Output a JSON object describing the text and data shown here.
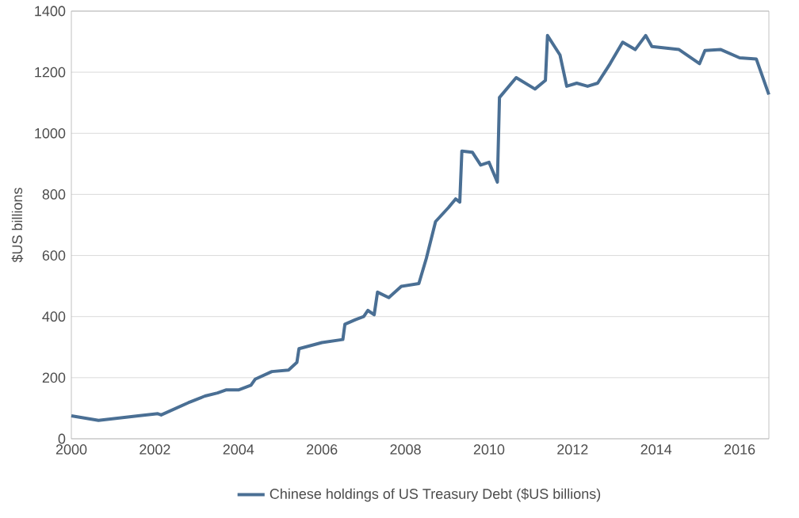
{
  "chart_data": {
    "type": "line",
    "ylabel": "$US billions",
    "xlim": [
      2000,
      2016.7
    ],
    "xticks": [
      2000,
      2002,
      2004,
      2006,
      2008,
      2010,
      2012,
      2014,
      2016
    ],
    "ylim": [
      0,
      1400
    ],
    "yticks": [
      0,
      200,
      400,
      600,
      800,
      1000,
      1200,
      1400
    ],
    "grid": "y",
    "legend": "bottom",
    "marker": "none",
    "line_style": "solid",
    "series": [
      {
        "name": "Chinese holdings of US Treasury Debt ($US billions)",
        "color": "#4a6f94",
        "x": [
          2000,
          2000.65,
          2001.6,
          2002.07,
          2002.15,
          2002.8,
          2003.2,
          2003.5,
          2003.7,
          2004,
          2004.3,
          2004.4,
          2004.8,
          2005.2,
          2005.4,
          2005.45,
          2006,
          2006.5,
          2006.55,
          2006.8,
          2007,
          2007.1,
          2007.25,
          2007.33,
          2007.6,
          2007.9,
          2008.32,
          2008.5,
          2008.72,
          2009.03,
          2009.2,
          2009.3,
          2009.35,
          2009.6,
          2009.8,
          2010,
          2010.2,
          2010.25,
          2010.65,
          2011.1,
          2011.35,
          2011.4,
          2011.7,
          2011.86,
          2012.1,
          2012.36,
          2012.6,
          2012.9,
          2013.2,
          2013.5,
          2013.75,
          2013.9,
          2014.55,
          2015.04,
          2015.17,
          2015.55,
          2016,
          2016.4,
          2016.7
        ],
        "values": [
          75,
          60,
          75,
          82,
          78,
          118,
          140,
          150,
          160,
          160,
          175,
          195,
          220,
          225,
          250,
          295,
          315,
          325,
          375,
          390,
          400,
          420,
          406,
          480,
          462,
          499,
          508,
          591,
          711,
          757,
          785,
          775,
          942,
          938,
          896,
          905,
          840,
          1117,
          1182,
          1145,
          1173,
          1320,
          1256,
          1154,
          1164,
          1154,
          1164,
          1228,
          1298,
          1274,
          1320,
          1284,
          1274,
          1228,
          1271,
          1274,
          1247,
          1243,
          1127
        ]
      }
    ]
  }
}
